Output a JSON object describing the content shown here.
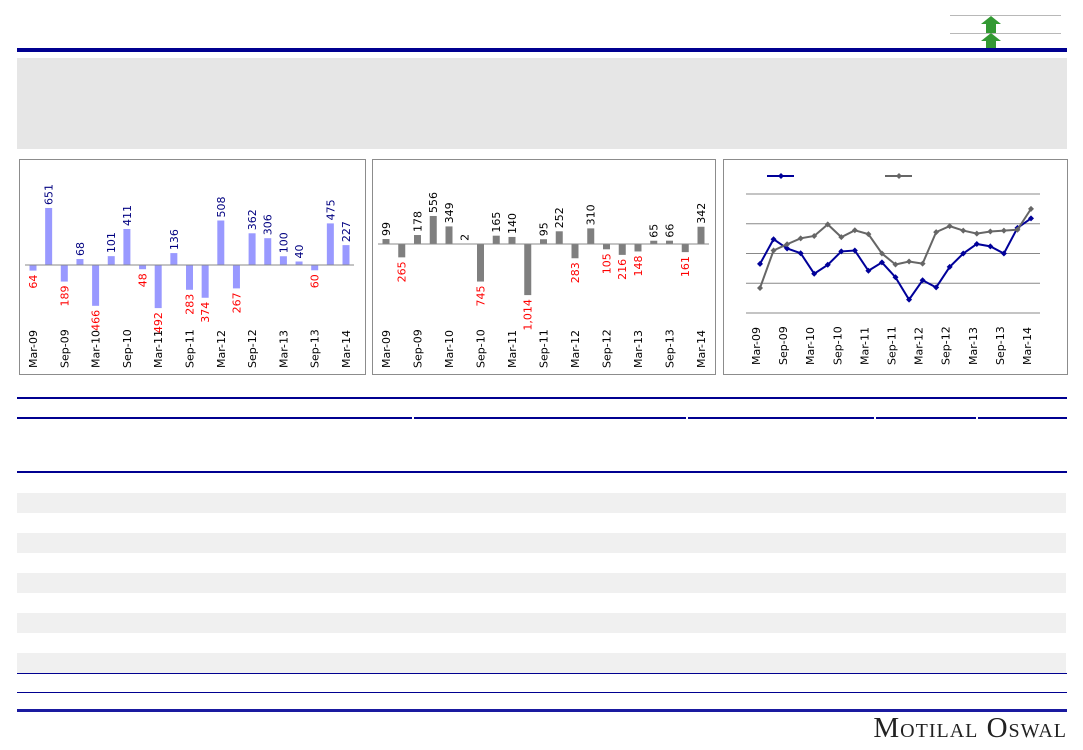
{
  "header": {
    "indicator_icons": [
      "arrow-up-icon",
      "arrow-up-icon"
    ],
    "indicator_color": "#339933"
  },
  "colors": {
    "rule": "#000090",
    "panel": "#e6e6e6",
    "stripe": "#f0f0f0"
  },
  "logo": {
    "text": "Motilal Oswal"
  },
  "chart_data": [
    {
      "type": "bar",
      "title": "",
      "categories": [
        "Mar-09",
        "Jun-09",
        "Sep-09",
        "Dec-09",
        "Mar-10",
        "Jun-10",
        "Sep-10",
        "Dec-10",
        "Mar-11",
        "Jun-11",
        "Sep-11",
        "Dec-11",
        "Mar-12",
        "Jun-12",
        "Sep-12",
        "Dec-12",
        "Mar-13",
        "Jun-13",
        "Sep-13",
        "Dec-13",
        "Mar-14"
      ],
      "tick_labels": [
        "Mar-09",
        "Sep-09",
        "Mar-10",
        "Sep-10",
        "Mar-11",
        "Sep-11",
        "Mar-12",
        "Sep-12",
        "Mar-13",
        "Sep-13",
        "Mar-14"
      ],
      "values": [
        -64,
        651,
        -189,
        68,
        -466,
        101,
        411,
        -48,
        -492,
        136,
        -283,
        -374,
        508,
        -267,
        362,
        306,
        100,
        40,
        -60,
        475,
        227
      ],
      "bar_color": "#9999ff",
      "positive_label_color": "#000080",
      "negative_label_color": "#ff0000",
      "xlabel": "",
      "ylabel": ""
    },
    {
      "type": "bar",
      "title": "",
      "categories": [
        "Mar-09",
        "Jun-09",
        "Sep-09",
        "Dec-09",
        "Mar-10",
        "Jun-10",
        "Sep-10",
        "Dec-10",
        "Mar-11",
        "Jun-11",
        "Sep-11",
        "Dec-11",
        "Mar-12",
        "Jun-12",
        "Sep-12",
        "Dec-12",
        "Mar-13",
        "Jun-13",
        "Sep-13",
        "Dec-13",
        "Mar-14"
      ],
      "tick_labels": [
        "Mar-09",
        "Sep-09",
        "Mar-10",
        "Sep-10",
        "Mar-11",
        "Sep-11",
        "Mar-12",
        "Sep-12",
        "Mar-13",
        "Sep-13",
        "Mar-14"
      ],
      "values": [
        99,
        -265,
        178,
        556,
        349,
        2,
        -745,
        165,
        140,
        -1014,
        95,
        252,
        -283,
        310,
        -105,
        -216,
        -148,
        65,
        66,
        -161,
        342
      ],
      "bar_color": "#7f7f7f",
      "positive_label_color": "#000000",
      "negative_label_color": "#ff0000",
      "xlabel": "",
      "ylabel": ""
    },
    {
      "type": "line",
      "title": "",
      "categories": [
        "Mar-09",
        "Jun-09",
        "Sep-09",
        "Dec-09",
        "Mar-10",
        "Jun-10",
        "Sep-10",
        "Dec-10",
        "Mar-11",
        "Jun-11",
        "Sep-11",
        "Dec-11",
        "Mar-12",
        "Jun-12",
        "Sep-12",
        "Dec-12",
        "Mar-13",
        "Jun-13",
        "Sep-13",
        "Dec-13",
        "Mar-14"
      ],
      "tick_labels": [
        "Mar-09",
        "Sep-09",
        "Mar-10",
        "Sep-10",
        "Mar-11",
        "Sep-11",
        "Mar-12",
        "Sep-12",
        "Mar-13",
        "Sep-13",
        "Mar-14"
      ],
      "ylim": [
        0,
        4
      ],
      "grid": true,
      "legend": "top-left",
      "series": [
        {
          "name": "",
          "color": "#000099",
          "values": [
            1.65,
            2.48,
            2.17,
            2.01,
            1.32,
            1.62,
            2.07,
            2.1,
            1.42,
            1.7,
            1.2,
            0.45,
            1.1,
            0.86,
            1.55,
            2.0,
            2.32,
            2.24,
            2.0,
            2.86,
            3.18
          ]
        },
        {
          "name": "",
          "color": "#666666",
          "values": [
            0.84,
            2.1,
            2.31,
            2.51,
            2.59,
            2.98,
            2.55,
            2.78,
            2.65,
            2.0,
            1.63,
            1.73,
            1.66,
            2.72,
            2.92,
            2.77,
            2.67,
            2.74,
            2.77,
            2.8,
            3.5
          ]
        }
      ]
    }
  ]
}
